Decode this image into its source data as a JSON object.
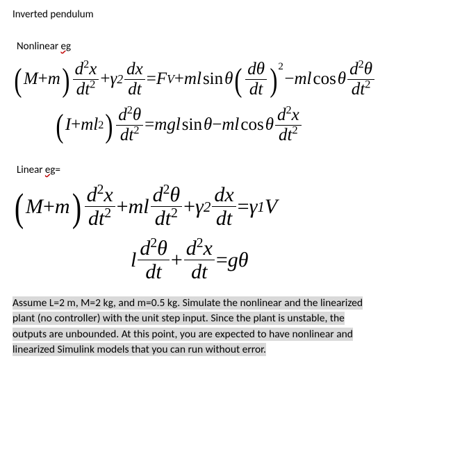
{
  "title": "Inverted pendulum",
  "nonlinear": {
    "label_prefix": "Nonlinear ",
    "label_wavy": "eg"
  },
  "linear": {
    "label_prefix": "Linear ",
    "label_wavy": "eg",
    "label_suffix": "="
  },
  "symbols": {
    "M": "M",
    "m": "m",
    "plus": " + ",
    "minus": " − ",
    "eq": " = ",
    "x": "x",
    "t": "t",
    "d": "d",
    "theta": "θ",
    "gamma": "γ",
    "I": "I",
    "l": "l",
    "g": "g",
    "F": "F",
    "V": "V",
    "sin": "sin",
    "cos": "cos",
    "one": "1",
    "two": "2",
    "sq": "2"
  },
  "assumption": {
    "line1": "Assume L=2 m, M=2 kg, and m=0.5 kg. Simulate the nonlinear and the linearized",
    "line2": "plant (no controller) with the unit step input. Since the plant is unstable, the",
    "line3": "outputs are unbounded. At this point, you are expected to have nonlinear and",
    "line4": "linearized Simulink models that you can run without error."
  },
  "style": {
    "highlight_bg": "#d9d9d9",
    "wavy_color": "#c00000",
    "body_font_size_pt": 11,
    "eq_font_size_pt": 19,
    "eq_font_family": "Cambria Math / Times New Roman",
    "background": "#ffffff",
    "text_color": "#000000"
  }
}
